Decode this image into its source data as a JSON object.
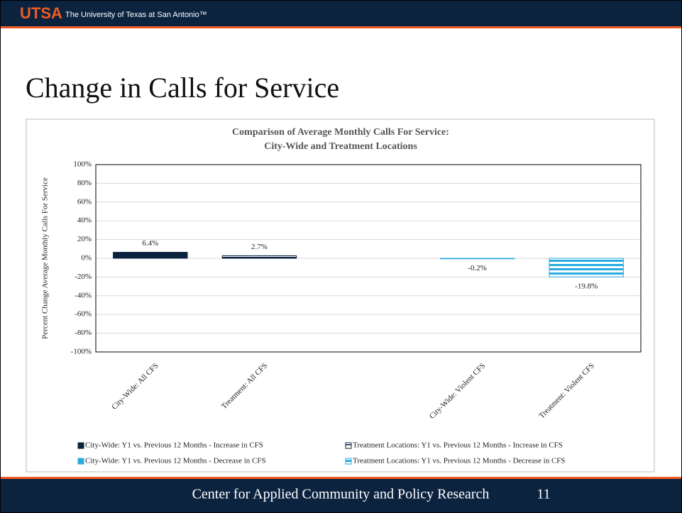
{
  "header": {
    "logo": "UTSA",
    "university": "The University of Texas at San Antonio™"
  },
  "slide_title": "Change in Calls for Service",
  "footer": {
    "text": "Center for Applied Community and Policy Research",
    "page": "11"
  },
  "chart_data": {
    "type": "bar",
    "stacked": true,
    "title": "Comparison of Average Monthly Calls For Service:",
    "subtitle": "City-Wide and Treatment Locations",
    "y_label": "Percent Change Average Monthly Calls For Service",
    "categories": [
      "City-Wide: All CFS",
      "Treatment: All CFS",
      null,
      "City-Wide: Violent CFS",
      "Treatment: Violent CFS"
    ],
    "series": [
      {
        "name": "City-Wide: Y1 vs. Previous 12 Months - Increase in CFS",
        "color": "#0c2340",
        "pattern": "solid",
        "values": [
          6.4,
          null,
          null,
          null,
          null
        ],
        "value_labels": [
          "6.4%",
          null,
          null,
          null,
          null
        ]
      },
      {
        "name": "Treatment Locations: Y1 vs. Previous 12 Months - Increase in CFS",
        "color": "#0c2340",
        "pattern": "stripes",
        "values": [
          null,
          2.7,
          null,
          null,
          null
        ],
        "value_labels": [
          null,
          "2.7%",
          null,
          null,
          null
        ]
      },
      {
        "name": "City-Wide: Y1 vs. Previous 12 Months -  Decrease in CFS",
        "color": "#29abe2",
        "pattern": "solid",
        "values": [
          null,
          null,
          null,
          -0.2,
          null
        ],
        "value_labels": [
          null,
          null,
          null,
          "-0.2%",
          null
        ]
      },
      {
        "name": "Treatment Locations: Y1 vs. Previous 12 Months - Decrease in CFS",
        "color": "#29abe2",
        "pattern": "stripes",
        "values": [
          null,
          null,
          null,
          null,
          -19.8
        ],
        "value_labels": [
          null,
          null,
          null,
          null,
          "-19.8%"
        ]
      }
    ],
    "ylim": [
      -100,
      100
    ],
    "yticks": [
      {
        "value": -100,
        "label": "-100%"
      },
      {
        "value": -80,
        "label": "-80%"
      },
      {
        "value": -60,
        "label": "-60%"
      },
      {
        "value": -40,
        "label": "-40%"
      },
      {
        "value": -20,
        "label": "-20%"
      },
      {
        "value": 0,
        "label": "0%"
      },
      {
        "value": 20,
        "label": "20%"
      },
      {
        "value": 40,
        "label": "40%"
      },
      {
        "value": 60,
        "label": "60%"
      },
      {
        "value": 80,
        "label": "80%"
      },
      {
        "value": 100,
        "label": "100%"
      }
    ],
    "grid": true,
    "legend": "bottom"
  }
}
